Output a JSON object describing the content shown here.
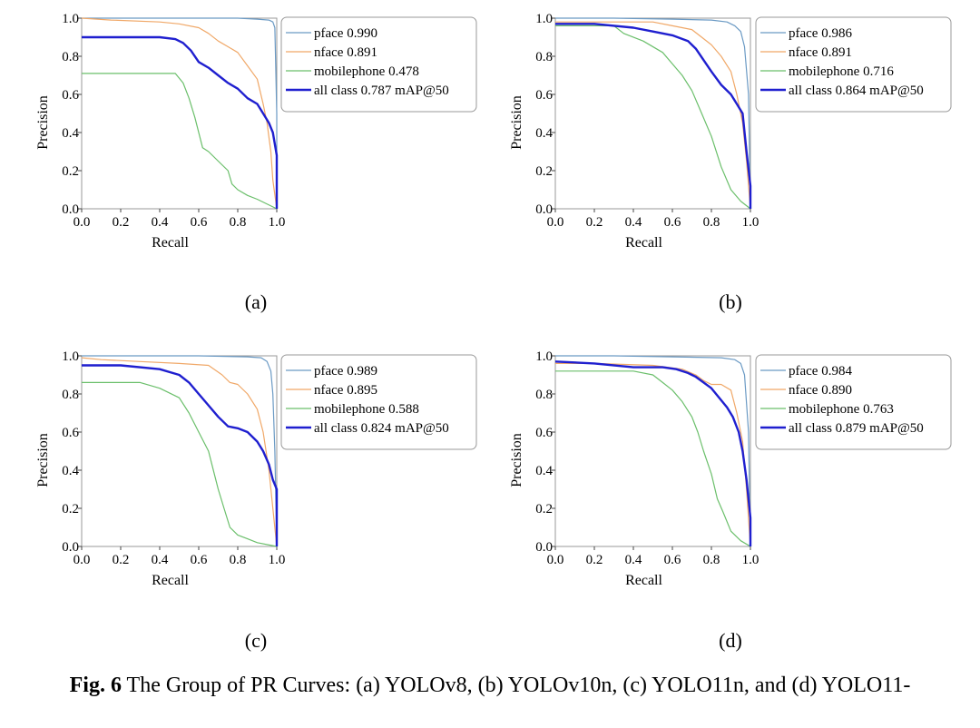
{
  "caption": {
    "label": "Fig. 6",
    "text": "The Group of PR Curves: (a) YOLOv8, (b) YOLOv10n, (c) YOLO11n, and (d) YOLO11-"
  },
  "colors": {
    "pface": "#6b9ac4",
    "nface": "#f0a868",
    "mobilephone": "#6bbf6b",
    "all": "#1f1fcf"
  },
  "chart_data": [
    {
      "type": "line",
      "panel_label": "(a)",
      "xlabel": "Recall",
      "ylabel": "Precision",
      "xlim": [
        0,
        1
      ],
      "ylim": [
        0,
        1
      ],
      "xticks": [
        "0.0",
        "0.2",
        "0.4",
        "0.6",
        "0.8",
        "1.0"
      ],
      "yticks": [
        "0.0",
        "0.2",
        "0.4",
        "0.6",
        "0.8",
        "1.0"
      ],
      "legend_position": "top-right-outside",
      "series": [
        {
          "key": "pface",
          "name": "pface 0.990",
          "x": [
            0,
            0.2,
            0.5,
            0.8,
            0.9,
            0.96,
            0.98,
            0.99,
            1.0,
            1.0
          ],
          "y": [
            1.0,
            1.0,
            1.0,
            1.0,
            0.995,
            0.99,
            0.98,
            0.95,
            0.5,
            0.0
          ]
        },
        {
          "key": "nface",
          "name": "nface 0.891",
          "x": [
            0,
            0.15,
            0.4,
            0.5,
            0.6,
            0.65,
            0.7,
            0.75,
            0.8,
            0.85,
            0.9,
            0.93,
            0.95,
            0.97,
            0.98,
            1.0
          ],
          "y": [
            1.0,
            0.99,
            0.98,
            0.97,
            0.95,
            0.92,
            0.88,
            0.85,
            0.82,
            0.75,
            0.68,
            0.55,
            0.45,
            0.3,
            0.15,
            0.0
          ]
        },
        {
          "key": "mobilephone",
          "name": "mobilephone 0.478",
          "x": [
            0,
            0.25,
            0.48,
            0.52,
            0.55,
            0.58,
            0.6,
            0.62,
            0.65,
            0.7,
            0.75,
            0.77,
            0.8,
            0.85,
            0.9,
            1.0
          ],
          "y": [
            0.71,
            0.71,
            0.71,
            0.66,
            0.58,
            0.48,
            0.4,
            0.32,
            0.3,
            0.25,
            0.2,
            0.13,
            0.1,
            0.07,
            0.05,
            0.0
          ]
        },
        {
          "key": "all",
          "name": "all class 0.787 mAP@50",
          "x": [
            0,
            0.2,
            0.4,
            0.48,
            0.52,
            0.56,
            0.6,
            0.65,
            0.7,
            0.75,
            0.8,
            0.85,
            0.9,
            0.93,
            0.96,
            0.98,
            1.0,
            1.0
          ],
          "y": [
            0.9,
            0.9,
            0.9,
            0.89,
            0.87,
            0.83,
            0.77,
            0.74,
            0.7,
            0.66,
            0.63,
            0.58,
            0.55,
            0.5,
            0.45,
            0.4,
            0.28,
            0.0
          ]
        }
      ]
    },
    {
      "type": "line",
      "panel_label": "(b)",
      "xlabel": "Recall",
      "ylabel": "Precision",
      "xlim": [
        0,
        1
      ],
      "ylim": [
        0,
        1
      ],
      "xticks": [
        "0.0",
        "0.2",
        "0.4",
        "0.6",
        "0.8",
        "1.0"
      ],
      "yticks": [
        "0.0",
        "0.2",
        "0.4",
        "0.6",
        "0.8",
        "1.0"
      ],
      "legend_position": "top-right-outside",
      "series": [
        {
          "key": "pface",
          "name": "pface 0.986",
          "x": [
            0,
            0.3,
            0.6,
            0.8,
            0.88,
            0.92,
            0.95,
            0.97,
            0.99,
            1.0
          ],
          "y": [
            1.0,
            1.0,
            0.995,
            0.99,
            0.98,
            0.96,
            0.93,
            0.85,
            0.6,
            0.0
          ]
        },
        {
          "key": "nface",
          "name": "nface 0.891",
          "x": [
            0,
            0.2,
            0.5,
            0.6,
            0.7,
            0.75,
            0.8,
            0.85,
            0.9,
            0.93,
            0.96,
            0.98,
            1.0
          ],
          "y": [
            0.98,
            0.98,
            0.98,
            0.96,
            0.94,
            0.9,
            0.86,
            0.8,
            0.72,
            0.6,
            0.45,
            0.25,
            0.0
          ]
        },
        {
          "key": "mobilephone",
          "name": "mobilephone 0.716",
          "x": [
            0,
            0.3,
            0.35,
            0.45,
            0.55,
            0.6,
            0.65,
            0.7,
            0.75,
            0.8,
            0.85,
            0.9,
            0.95,
            1.0
          ],
          "y": [
            0.96,
            0.96,
            0.92,
            0.88,
            0.82,
            0.76,
            0.7,
            0.62,
            0.5,
            0.38,
            0.22,
            0.1,
            0.04,
            0.0
          ]
        },
        {
          "key": "all",
          "name": "all class 0.864 mAP@50",
          "x": [
            0,
            0.2,
            0.4,
            0.5,
            0.6,
            0.68,
            0.72,
            0.76,
            0.8,
            0.85,
            0.9,
            0.93,
            0.96,
            0.98,
            1.0,
            1.0
          ],
          "y": [
            0.97,
            0.97,
            0.95,
            0.93,
            0.91,
            0.88,
            0.84,
            0.78,
            0.72,
            0.65,
            0.6,
            0.55,
            0.5,
            0.3,
            0.12,
            0.0
          ]
        }
      ]
    },
    {
      "type": "line",
      "panel_label": "(c)",
      "xlabel": "Recall",
      "ylabel": "Precision",
      "xlim": [
        0,
        1
      ],
      "ylim": [
        0,
        1
      ],
      "xticks": [
        "0.0",
        "0.2",
        "0.4",
        "0.6",
        "0.8",
        "1.0"
      ],
      "yticks": [
        "0.0",
        "0.2",
        "0.4",
        "0.6",
        "0.8",
        "1.0"
      ],
      "legend_position": "top-right-outside",
      "series": [
        {
          "key": "pface",
          "name": "pface 0.989",
          "x": [
            0,
            0.3,
            0.6,
            0.85,
            0.92,
            0.95,
            0.97,
            0.98,
            0.99,
            1.0
          ],
          "y": [
            1.0,
            1.0,
            1.0,
            0.995,
            0.99,
            0.97,
            0.92,
            0.8,
            0.5,
            0.0
          ]
        },
        {
          "key": "nface",
          "name": "nface 0.895",
          "x": [
            0,
            0.1,
            0.3,
            0.5,
            0.65,
            0.72,
            0.76,
            0.8,
            0.85,
            0.9,
            0.93,
            0.96,
            0.98,
            1.0
          ],
          "y": [
            0.99,
            0.98,
            0.97,
            0.96,
            0.95,
            0.9,
            0.86,
            0.85,
            0.8,
            0.72,
            0.6,
            0.4,
            0.2,
            0.0
          ]
        },
        {
          "key": "mobilephone",
          "name": "mobilephone 0.588",
          "x": [
            0,
            0.3,
            0.4,
            0.5,
            0.55,
            0.6,
            0.65,
            0.68,
            0.7,
            0.73,
            0.76,
            0.8,
            0.85,
            0.9,
            1.0
          ],
          "y": [
            0.86,
            0.86,
            0.83,
            0.78,
            0.7,
            0.6,
            0.5,
            0.38,
            0.3,
            0.2,
            0.1,
            0.06,
            0.04,
            0.02,
            0.0
          ]
        },
        {
          "key": "all",
          "name": "all class 0.824 mAP@50",
          "x": [
            0,
            0.2,
            0.4,
            0.5,
            0.55,
            0.6,
            0.65,
            0.7,
            0.75,
            0.8,
            0.85,
            0.9,
            0.93,
            0.96,
            0.98,
            1.0,
            1.0
          ],
          "y": [
            0.95,
            0.95,
            0.93,
            0.9,
            0.86,
            0.8,
            0.74,
            0.68,
            0.63,
            0.62,
            0.6,
            0.55,
            0.5,
            0.43,
            0.35,
            0.3,
            0.0
          ]
        }
      ]
    },
    {
      "type": "line",
      "panel_label": "(d)",
      "xlabel": "Recall",
      "ylabel": "Precision",
      "xlim": [
        0,
        1
      ],
      "ylim": [
        0,
        1
      ],
      "xticks": [
        "0.0",
        "0.2",
        "0.4",
        "0.6",
        "0.8",
        "1.0"
      ],
      "yticks": [
        "0.0",
        "0.2",
        "0.4",
        "0.6",
        "0.8",
        "1.0"
      ],
      "legend_position": "top-right-outside",
      "series": [
        {
          "key": "pface",
          "name": "pface 0.984",
          "x": [
            0,
            0.3,
            0.6,
            0.85,
            0.92,
            0.95,
            0.97,
            0.99,
            1.0
          ],
          "y": [
            1.0,
            1.0,
            0.995,
            0.99,
            0.98,
            0.96,
            0.9,
            0.6,
            0.0
          ]
        },
        {
          "key": "nface",
          "name": "nface 0.890",
          "x": [
            0,
            0.2,
            0.5,
            0.65,
            0.72,
            0.76,
            0.8,
            0.85,
            0.9,
            0.93,
            0.96,
            0.98,
            1.0
          ],
          "y": [
            0.96,
            0.96,
            0.95,
            0.93,
            0.9,
            0.87,
            0.85,
            0.85,
            0.82,
            0.7,
            0.55,
            0.3,
            0.0
          ]
        },
        {
          "key": "mobilephone",
          "name": "mobilephone 0.763",
          "x": [
            0,
            0.4,
            0.5,
            0.55,
            0.6,
            0.65,
            0.7,
            0.73,
            0.76,
            0.8,
            0.83,
            0.86,
            0.9,
            0.95,
            1.0
          ],
          "y": [
            0.92,
            0.92,
            0.9,
            0.86,
            0.82,
            0.76,
            0.68,
            0.6,
            0.5,
            0.38,
            0.25,
            0.18,
            0.08,
            0.03,
            0.0
          ]
        },
        {
          "key": "all",
          "name": "all class 0.879 mAP@50",
          "x": [
            0,
            0.2,
            0.4,
            0.55,
            0.62,
            0.68,
            0.72,
            0.76,
            0.8,
            0.84,
            0.88,
            0.91,
            0.94,
            0.96,
            0.98,
            1.0,
            1.0
          ],
          "y": [
            0.97,
            0.96,
            0.94,
            0.94,
            0.93,
            0.91,
            0.89,
            0.86,
            0.83,
            0.78,
            0.73,
            0.68,
            0.6,
            0.5,
            0.35,
            0.15,
            0.0
          ]
        }
      ]
    }
  ]
}
